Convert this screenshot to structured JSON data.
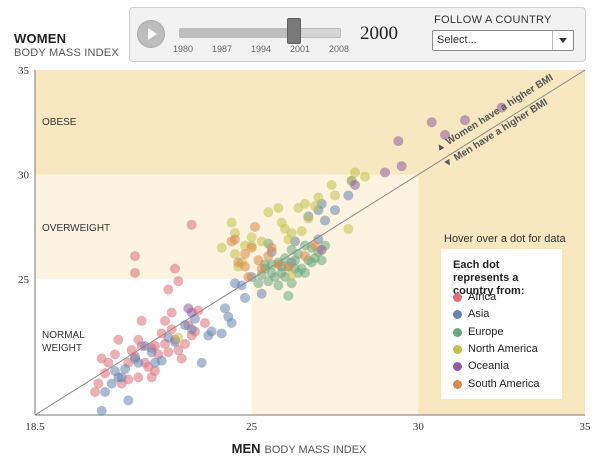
{
  "header": {
    "y_title": "WOMEN",
    "y_subtitle": "BODY MASS INDEX",
    "x_title": "MEN",
    "x_subtitle": "BODY MASS INDEX"
  },
  "controls": {
    "play_icon": "play-icon",
    "slider_ticks": [
      "1980",
      "1987",
      "1994",
      "2001",
      "2008"
    ],
    "slider_min": 1980,
    "slider_max": 2008,
    "slider_value": 2000,
    "year": "2000",
    "follow_label": "FOLLOW A COUNTRY",
    "follow_value": "Select..."
  },
  "zones": {
    "obese": "OBESE",
    "overweight": "OVERWEIGHT",
    "normal": "NORMAL WEIGHT"
  },
  "diagonal": {
    "women_higher": "▲ Women have a higher BMI",
    "men_higher": "▼ Men have a higher BMI"
  },
  "hover_hint": "Hover over a dot for data",
  "legend": {
    "title": "Each dot represents a country from:",
    "items": [
      {
        "label": "Africa",
        "color": "#d9707a"
      },
      {
        "label": "Asia",
        "color": "#6a83ad"
      },
      {
        "label": "Europe",
        "color": "#6aa87b"
      },
      {
        "label": "North America",
        "color": "#c1c14f"
      },
      {
        "label": "Oceania",
        "color": "#8e5c9f"
      },
      {
        "label": "South America",
        "color": "#d98a4a"
      }
    ]
  },
  "chart_data": {
    "type": "scatter",
    "xlabel": "MEN BODY MASS INDEX",
    "ylabel": "WOMEN BODY MASS INDEX",
    "xlim": [
      18.5,
      35
    ],
    "ylim": [
      18.5,
      35
    ],
    "x_ticks": [
      "18.5",
      "25",
      "30",
      "35"
    ],
    "y_ticks": [
      "25",
      "30",
      "35"
    ],
    "reference_line": "y = x",
    "series": [
      {
        "name": "Africa",
        "color": "#d9707a",
        "points": [
          [
            20.3,
            19.6
          ],
          [
            20.4,
            20.0
          ],
          [
            20.6,
            20.5
          ],
          [
            20.5,
            21.2
          ],
          [
            20.7,
            21.0
          ],
          [
            20.9,
            21.4
          ],
          [
            21.1,
            20.0
          ],
          [
            21.3,
            20.2
          ],
          [
            21.4,
            21.6
          ],
          [
            21.5,
            21.3
          ],
          [
            21.6,
            22.1
          ],
          [
            21.7,
            21.8
          ],
          [
            21.8,
            21.0
          ],
          [
            21.9,
            20.8
          ],
          [
            22.0,
            20.3
          ],
          [
            22.1,
            20.6
          ],
          [
            22.0,
            21.7
          ],
          [
            22.2,
            21.4
          ],
          [
            22.3,
            22.4
          ],
          [
            22.4,
            21.9
          ],
          [
            22.6,
            22.6
          ],
          [
            22.7,
            22.1
          ],
          [
            22.8,
            21.6
          ],
          [
            22.9,
            21.2
          ],
          [
            23.0,
            21.9
          ],
          [
            23.1,
            22.8
          ],
          [
            23.2,
            22.3
          ],
          [
            22.7,
            25.5
          ],
          [
            22.6,
            23.4
          ],
          [
            22.4,
            23.0
          ],
          [
            22.5,
            24.5
          ],
          [
            22.1,
            21.8
          ],
          [
            21.7,
            23.0
          ],
          [
            21.5,
            26.1
          ],
          [
            21.5,
            25.3
          ],
          [
            23.2,
            27.6
          ],
          [
            22.8,
            24.9
          ],
          [
            21.3,
            21.0
          ],
          [
            21.6,
            20.3
          ],
          [
            22.5,
            21.5
          ],
          [
            21.0,
            22.1
          ],
          [
            23.3,
            22.5
          ],
          [
            23.6,
            22.9
          ],
          [
            23.4,
            23.5
          ]
        ]
      },
      {
        "name": "Asia",
        "color": "#6a83ad",
        "points": [
          [
            20.5,
            18.7
          ],
          [
            20.6,
            19.6
          ],
          [
            20.8,
            20.0
          ],
          [
            21.0,
            20.3
          ],
          [
            21.2,
            20.7
          ],
          [
            21.3,
            19.2
          ],
          [
            21.6,
            21.0
          ],
          [
            21.8,
            21.8
          ],
          [
            22.0,
            21.5
          ],
          [
            22.3,
            21.1
          ],
          [
            22.5,
            22.2
          ],
          [
            23.0,
            22.8
          ],
          [
            23.3,
            23.1
          ],
          [
            23.5,
            21.0
          ],
          [
            23.8,
            22.5
          ],
          [
            24.1,
            22.4
          ],
          [
            24.3,
            23.2
          ],
          [
            24.7,
            24.7
          ],
          [
            25.0,
            25.1
          ],
          [
            25.3,
            24.3
          ],
          [
            24.4,
            22.9
          ],
          [
            24.2,
            23.6
          ],
          [
            22.7,
            22.0
          ],
          [
            23.7,
            22.3
          ],
          [
            26.2,
            25.8
          ],
          [
            25.6,
            26.3
          ],
          [
            26.3,
            26.8
          ],
          [
            27.1,
            28.6
          ],
          [
            27.0,
            28.3
          ],
          [
            26.7,
            28.0
          ],
          [
            27.0,
            26.9
          ],
          [
            27.2,
            27.8
          ],
          [
            28.0,
            29.7
          ],
          [
            27.9,
            29.0
          ],
          [
            27.5,
            28.3
          ],
          [
            21.1,
            20.3
          ],
          [
            21.5,
            21.2
          ],
          [
            20.9,
            20.6
          ],
          [
            22.1,
            21.0
          ],
          [
            23.2,
            22.6
          ],
          [
            24.8,
            24.1
          ],
          [
            25.9,
            25.6
          ],
          [
            24.5,
            24.8
          ]
        ]
      },
      {
        "name": "Europe",
        "color": "#6aa87b",
        "points": [
          [
            25.2,
            24.8
          ],
          [
            25.3,
            25.2
          ],
          [
            25.4,
            25.5
          ],
          [
            25.5,
            24.9
          ],
          [
            25.6,
            25.7
          ],
          [
            25.7,
            25.1
          ],
          [
            25.8,
            24.7
          ],
          [
            25.8,
            25.8
          ],
          [
            25.9,
            25.3
          ],
          [
            26.0,
            26.0
          ],
          [
            26.0,
            25.1
          ],
          [
            26.1,
            25.6
          ],
          [
            26.2,
            24.8
          ],
          [
            26.3,
            25.9
          ],
          [
            26.4,
            25.3
          ],
          [
            26.4,
            26.2
          ],
          [
            26.5,
            25.5
          ],
          [
            26.6,
            26.6
          ],
          [
            26.7,
            25.9
          ],
          [
            26.8,
            25.8
          ],
          [
            26.8,
            26.5
          ],
          [
            26.9,
            26.0
          ],
          [
            27.0,
            26.3
          ],
          [
            27.1,
            25.9
          ],
          [
            26.1,
            24.2
          ],
          [
            26.3,
            25.5
          ],
          [
            25.6,
            25.3
          ],
          [
            27.2,
            26.6
          ],
          [
            25.5,
            26.7
          ],
          [
            26.2,
            26.4
          ],
          [
            26.6,
            25.3
          ],
          [
            25.4,
            25.7
          ]
        ]
      },
      {
        "name": "North America",
        "color": "#c1c14f",
        "points": [
          [
            22.8,
            22.2
          ],
          [
            24.1,
            26.5
          ],
          [
            24.4,
            27.7
          ],
          [
            24.5,
            26.2
          ],
          [
            24.6,
            25.6
          ],
          [
            24.7,
            25.8
          ],
          [
            24.8,
            26.6
          ],
          [
            25.0,
            26.6
          ],
          [
            25.3,
            26.8
          ],
          [
            25.5,
            28.2
          ],
          [
            25.8,
            28.4
          ],
          [
            25.9,
            27.7
          ],
          [
            26.0,
            27.4
          ],
          [
            26.1,
            26.9
          ],
          [
            26.2,
            27.2
          ],
          [
            26.2,
            25.2
          ],
          [
            26.4,
            28.4
          ],
          [
            26.6,
            28.6
          ],
          [
            26.7,
            27.9
          ],
          [
            26.9,
            28.5
          ],
          [
            27.0,
            28.9
          ],
          [
            27.4,
            29.5
          ],
          [
            27.5,
            29.0
          ],
          [
            27.9,
            27.4
          ],
          [
            28.0,
            29.7
          ],
          [
            28.4,
            29.9
          ],
          [
            28.1,
            30.1
          ],
          [
            24.5,
            27.2
          ],
          [
            25.0,
            27.0
          ],
          [
            26.5,
            27.3
          ]
        ]
      },
      {
        "name": "Oceania",
        "color": "#8e5c9f",
        "points": [
          [
            23.1,
            23.6
          ],
          [
            23.2,
            23.4
          ],
          [
            28.1,
            29.5
          ],
          [
            29.0,
            30.1
          ],
          [
            29.4,
            31.6
          ],
          [
            29.5,
            30.4
          ],
          [
            30.4,
            32.5
          ],
          [
            30.8,
            31.9
          ],
          [
            31.4,
            32.6
          ],
          [
            32.5,
            33.2
          ],
          [
            27.1,
            26.4
          ]
        ]
      },
      {
        "name": "South America",
        "color": "#d98a4a",
        "points": [
          [
            24.4,
            26.8
          ],
          [
            24.5,
            26.9
          ],
          [
            24.6,
            25.8
          ],
          [
            24.8,
            25.6
          ],
          [
            24.8,
            26.2
          ],
          [
            25.0,
            26.5
          ],
          [
            25.1,
            27.5
          ],
          [
            25.2,
            25.9
          ],
          [
            25.5,
            26.1
          ],
          [
            25.6,
            26.5
          ],
          [
            25.8,
            25.7
          ],
          [
            26.1,
            25.6
          ],
          [
            26.6,
            26.1
          ],
          [
            26.9,
            26.6
          ],
          [
            25.3,
            25.5
          ],
          [
            24.9,
            25.1
          ]
        ]
      }
    ]
  }
}
